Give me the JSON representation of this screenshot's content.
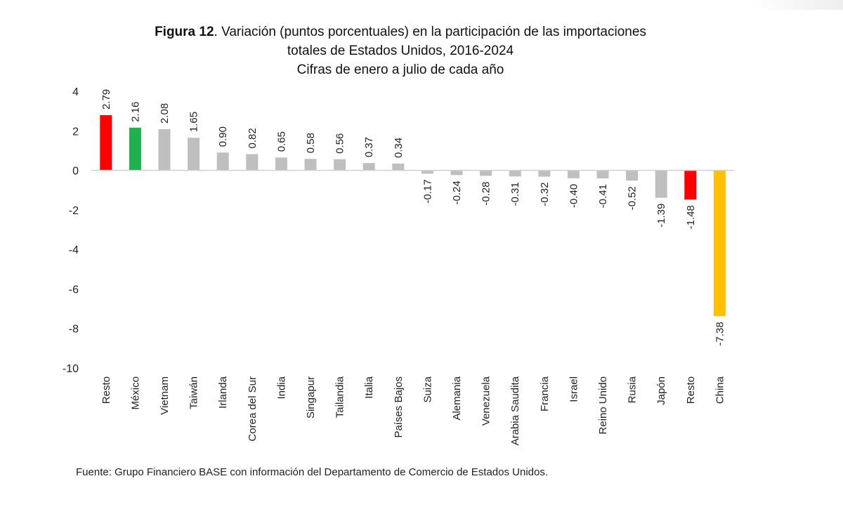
{
  "chart_data": {
    "type": "bar",
    "title_bold": "Figura 12",
    "title_rest": ". Variación (puntos porcentuales) en la participación de las importaciones",
    "title_line2": "totales de Estados Unidos, 2016-2024",
    "subtitle": "Cifras de enero a julio de cada año",
    "categories": [
      "Resto",
      "México",
      "Vietnam",
      "Taiwán",
      "Irlanda",
      "Corea del Sur",
      "India",
      "Singapur",
      "Tailandia",
      "Italia",
      "Países Bajos",
      "Suiza",
      "Alemania",
      "Venezuela",
      "Arabia Saudita",
      "Francia",
      "Israel",
      "Reino Unido",
      "Rusia",
      "Japón",
      "Resto",
      "China"
    ],
    "values": [
      2.79,
      2.16,
      2.08,
      1.65,
      0.9,
      0.82,
      0.65,
      0.58,
      0.56,
      0.37,
      0.34,
      -0.17,
      -0.24,
      -0.28,
      -0.31,
      -0.32,
      -0.4,
      -0.41,
      -0.52,
      -1.39,
      -1.48,
      -7.38
    ],
    "value_labels": [
      "2.79",
      "2.16",
      "2.08",
      "1.65",
      "0.90",
      "0.82",
      "0.65",
      "0.58",
      "0.56",
      "0.37",
      "0.34",
      "-0.17",
      "-0.24",
      "-0.28",
      "-0.31",
      "-0.32",
      "-0.40",
      "-0.41",
      "-0.52",
      "-1.39",
      "-1.48",
      "-7.38"
    ],
    "colors": [
      "#ff0000",
      "#1fb050",
      "#bfbfbf",
      "#bfbfbf",
      "#bfbfbf",
      "#bfbfbf",
      "#bfbfbf",
      "#bfbfbf",
      "#bfbfbf",
      "#bfbfbf",
      "#bfbfbf",
      "#bfbfbf",
      "#bfbfbf",
      "#bfbfbf",
      "#bfbfbf",
      "#bfbfbf",
      "#bfbfbf",
      "#bfbfbf",
      "#bfbfbf",
      "#bfbfbf",
      "#ff0000",
      "#ffc000"
    ],
    "ylim": [
      -10,
      4
    ],
    "yticks": [
      4,
      2,
      0,
      -2,
      -4,
      -6,
      -8,
      -10
    ],
    "grid": false,
    "legend": "none"
  },
  "source_note": "Fuente: Grupo Financiero BASE con información del Departamento de Comercio de Estados Unidos."
}
